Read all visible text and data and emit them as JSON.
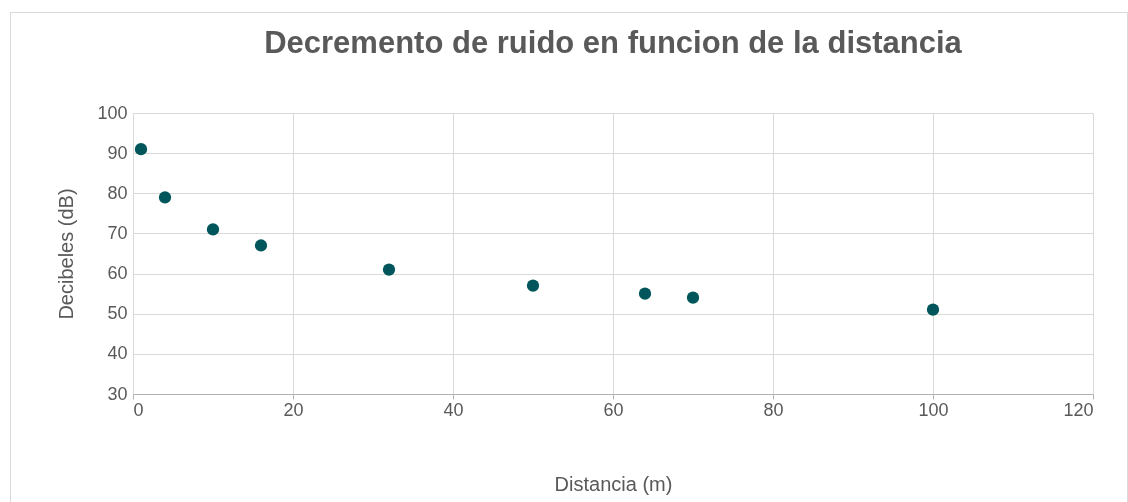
{
  "chart_data": {
    "type": "scatter",
    "title": "Decremento de ruido en funcion de la distancia",
    "xlabel": "Distancia (m)",
    "ylabel": "Decibeles (dB)",
    "x": [
      1,
      4,
      10,
      16,
      32,
      50,
      64,
      70,
      100
    ],
    "series": [
      {
        "color": "#00565a",
        "values": [
          91,
          79,
          71,
          67,
          61,
          57,
          55,
          54,
          51
        ]
      }
    ],
    "xlim": [
      0,
      120
    ],
    "xticks": [
      0,
      20,
      40,
      60,
      80,
      100,
      120
    ],
    "ylim": [
      30,
      100
    ],
    "yticks": [
      30,
      40,
      50,
      60,
      70,
      80,
      90,
      100
    ],
    "grid": true,
    "legend": false,
    "marker": "circle"
  }
}
